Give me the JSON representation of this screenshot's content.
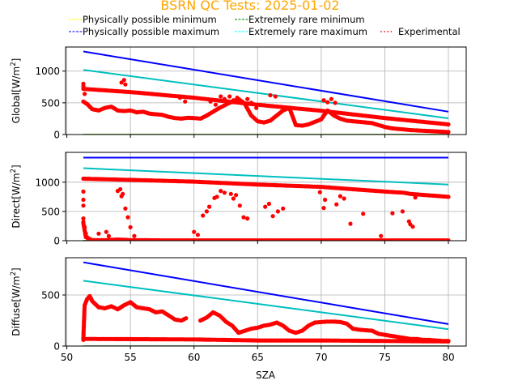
{
  "chart_data": {
    "type": "scatter",
    "title": "BSRN QC Tests: 2025-01-02",
    "title_color": "#ffa500",
    "legend": {
      "placement": "top",
      "entries": [
        {
          "label": "Physically possible minimum",
          "color": "#ffff00",
          "style": "dashed"
        },
        {
          "label": "Extremely rare minimum",
          "color": "#008000",
          "style": "dashed"
        },
        {
          "label": "Physically possible maximum",
          "color": "#0000ff",
          "style": "dashed"
        },
        {
          "label": "Extremely rare maximum",
          "color": "#00ffff",
          "style": "dashed"
        },
        {
          "label": "Experimental",
          "color": "#ff0000",
          "style": "dotted"
        }
      ]
    },
    "xlabel": "SZA",
    "xlim": [
      49.9,
      81.4
    ],
    "xticks": [
      50,
      55,
      60,
      65,
      70,
      75,
      80
    ],
    "grid": true,
    "panels": [
      {
        "name": "global",
        "ylabel_main": "Global[W/m",
        "ylabel_sup": "2",
        "ylabel_end": "]",
        "ylim": [
          0,
          1380
        ],
        "yticks": [
          0,
          500,
          1000
        ],
        "limits": {
          "phys_min": {
            "x": [
              51.3,
              80.0
            ],
            "y": [
              -4,
              -4
            ],
            "color": "#ffff00"
          },
          "rare_min": {
            "x": [
              51.3,
              80.0
            ],
            "y": [
              -2,
              -2
            ],
            "color": "#008000"
          },
          "phys_max": {
            "x": [
              51.3,
              80.0
            ],
            "y": [
              1310,
              360
            ],
            "color": "#0000ff"
          },
          "rare_max": {
            "x": [
              51.3,
              80.0
            ],
            "y": [
              1020,
              255
            ],
            "color": "#00bfbf"
          }
        },
        "experimental_upper": {
          "x": [
            51.3,
            55,
            60,
            65,
            70,
            75,
            80
          ],
          "y": [
            720,
            670,
            580,
            470,
            375,
            260,
            160
          ]
        },
        "experimental_lower": {
          "x": [
            51.3,
            51.6,
            52.0,
            52.5,
            53.0,
            53.5,
            54.0,
            54.5,
            55.0,
            55.5,
            56.0,
            56.5,
            57.0,
            57.5,
            58.0,
            58.5,
            59.0,
            59.5,
            60.0,
            60.5,
            61.0,
            61.5,
            62.0,
            62.5,
            63.0,
            63.5,
            64.0,
            64.5,
            65.0,
            65.5,
            66.0,
            66.5,
            67.0,
            67.5,
            68.0,
            68.5,
            69.0,
            69.5,
            70.0,
            70.5,
            71.0,
            71.5,
            72.0,
            72.5,
            73.0,
            73.5,
            74.0,
            74.5,
            75.0,
            75.5,
            76.0,
            76.5,
            77.0,
            77.5,
            78.0,
            78.5,
            79.0,
            79.5,
            80.0
          ],
          "y": [
            520,
            480,
            400,
            380,
            420,
            440,
            380,
            370,
            380,
            350,
            360,
            330,
            320,
            310,
            280,
            260,
            250,
            265,
            260,
            250,
            300,
            360,
            420,
            470,
            520,
            560,
            480,
            300,
            210,
            190,
            220,
            300,
            380,
            420,
            150,
            140,
            160,
            200,
            240,
            380,
            300,
            250,
            220,
            210,
            200,
            190,
            180,
            150,
            120,
            100,
            90,
            80,
            70,
            65,
            60,
            55,
            50,
            45,
            40
          ]
        },
        "experimental_scatter": {
          "x": [
            51.3,
            51.3,
            51.4,
            54.3,
            54.5,
            54.6,
            58.9,
            59.3,
            61.3,
            61.7,
            62.1,
            62.4,
            62.8,
            63.1,
            63.4,
            63.8,
            64.2,
            64.5,
            64.9,
            66.0,
            66.4,
            70.2,
            70.5,
            70.8,
            71.1
          ],
          "y": [
            800,
            760,
            640,
            820,
            860,
            790,
            580,
            520,
            520,
            470,
            600,
            560,
            600,
            540,
            580,
            520,
            560,
            500,
            420,
            620,
            600,
            540,
            510,
            560,
            500
          ]
        }
      },
      {
        "name": "direct",
        "ylabel_main": "Direct[W/m",
        "ylabel_sup": "2",
        "ylabel_end": "]",
        "ylim": [
          0,
          1510
        ],
        "yticks": [
          0,
          500,
          1000
        ],
        "limits": {
          "phys_min": {
            "x": [
              51.3,
              80.0
            ],
            "y": [
              -4,
              -4
            ],
            "color": "#ffff00"
          },
          "rare_min": {
            "x": [
              51.3,
              80.0
            ],
            "y": [
              -2,
              -2
            ],
            "color": "#008000"
          },
          "phys_max": {
            "x": [
              51.3,
              80.0
            ],
            "y": [
              1420,
              1420
            ],
            "color": "#0000ff"
          },
          "rare_max": {
            "x": [
              51.3,
              80.0
            ],
            "y": [
              1240,
              960
            ],
            "color": "#00bfbf"
          }
        },
        "experimental_upper": {
          "x": [
            51.3,
            55,
            60,
            65,
            70,
            75,
            76.5,
            77.0,
            80.0
          ],
          "y": [
            1060,
            1040,
            1010,
            960,
            920,
            840,
            820,
            800,
            750
          ]
        },
        "experimental_lower": {
          "x": [
            51.3,
            51.5,
            52.0,
            53.0,
            54.0,
            55.0,
            58.0,
            60.0,
            65.0,
            70.0,
            73.0,
            75.0,
            80.0
          ],
          "y": [
            300,
            60,
            10,
            10,
            20,
            10,
            5,
            5,
            5,
            5,
            5,
            5,
            5
          ]
        },
        "experimental_scatter": {
          "x": [
            51.3,
            51.3,
            51.3,
            51.3,
            51.3,
            51.4,
            51.5,
            51.6,
            51.8,
            52.5,
            53.1,
            53.3,
            54.0,
            54.2,
            54.3,
            54.4,
            54.6,
            54.8,
            55.0,
            55.3,
            60.0,
            60.3,
            60.7,
            61.0,
            61.2,
            61.6,
            61.8,
            62.1,
            62.4,
            62.9,
            63.1,
            63.3,
            63.6,
            63.9,
            64.2,
            65.6,
            65.9,
            66.2,
            66.6,
            67.0,
            69.9,
            70.2,
            70.3,
            71.2,
            71.5,
            71.8,
            72.3,
            73.3,
            74.7,
            75.6,
            76.4,
            76.9,
            77.0,
            77.2,
            77.4
          ],
          "y": [
            840,
            700,
            600,
            380,
            320,
            230,
            120,
            60,
            20,
            120,
            150,
            80,
            850,
            880,
            760,
            800,
            550,
            400,
            230,
            80,
            150,
            100,
            430,
            500,
            580,
            730,
            750,
            850,
            820,
            800,
            720,
            780,
            600,
            400,
            380,
            580,
            630,
            420,
            500,
            550,
            830,
            560,
            700,
            620,
            760,
            720,
            290,
            460,
            80,
            470,
            500,
            330,
            280,
            240,
            740
          ]
        }
      },
      {
        "name": "diffuse",
        "ylabel_main": "Diffuse[W/m",
        "ylabel_sup": "2",
        "ylabel_end": "]",
        "ylim": [
          0,
          865
        ],
        "yticks": [
          0,
          500
        ],
        "limits": {
          "phys_min": {
            "x": [
              51.3,
              80.0
            ],
            "y": [
              -4,
              -4
            ],
            "color": "#ffff00"
          },
          "rare_min": {
            "x": [
              51.3,
              80.0
            ],
            "y": [
              -2,
              -2
            ],
            "color": "#008000"
          },
          "phys_max": {
            "x": [
              51.3,
              80.0
            ],
            "y": [
              820,
              215
            ],
            "color": "#0000ff"
          },
          "rare_max": {
            "x": [
              51.3,
              80.0
            ],
            "y": [
              640,
              165
            ],
            "color": "#00bfbf"
          }
        },
        "experimental_upper": {
          "x": [
            51.3,
            51.4,
            51.6,
            51.8,
            52.0,
            52.5,
            53.0,
            53.5,
            54.0,
            54.5,
            55.0,
            55.5,
            56.0,
            56.5,
            57.0,
            57.5,
            58.0,
            58.5,
            59.0,
            59.5,
            60.0,
            60.5,
            61.0,
            61.5,
            62.0,
            62.5,
            63.0,
            63.5,
            64.0,
            64.5,
            65.0,
            65.5,
            66.0,
            66.5,
            67.0,
            67.5,
            68.0,
            68.5,
            69.0,
            69.5,
            70.0,
            70.5,
            71.0,
            71.5,
            72.0,
            72.5,
            73.0,
            73.5,
            74.0,
            74.5,
            75.0,
            75.5,
            76.0,
            76.5,
            77.0,
            77.5,
            78.0,
            78.5,
            79.0,
            79.5,
            80.0
          ],
          "y": [
            80,
            400,
            460,
            490,
            440,
            380,
            370,
            390,
            360,
            400,
            430,
            380,
            370,
            360,
            330,
            340,
            300,
            260,
            250,
            280,
            null,
            250,
            280,
            330,
            300,
            240,
            200,
            130,
            150,
            170,
            180,
            200,
            210,
            230,
            200,
            150,
            130,
            150,
            200,
            230,
            235,
            240,
            240,
            235,
            220,
            170,
            160,
            155,
            150,
            120,
            110,
            100,
            90,
            80,
            70,
            70,
            60,
            60,
            55,
            50,
            50
          ]
        },
        "experimental_lower": {
          "x": [
            51.3,
            51.3,
            60.0,
            65.0,
            70.0,
            75.0,
            80.0
          ],
          "y": [
            60,
            70,
            65,
            55,
            55,
            50,
            45
          ]
        },
        "experimental_scatter": {
          "x": [],
          "y": []
        }
      }
    ]
  }
}
